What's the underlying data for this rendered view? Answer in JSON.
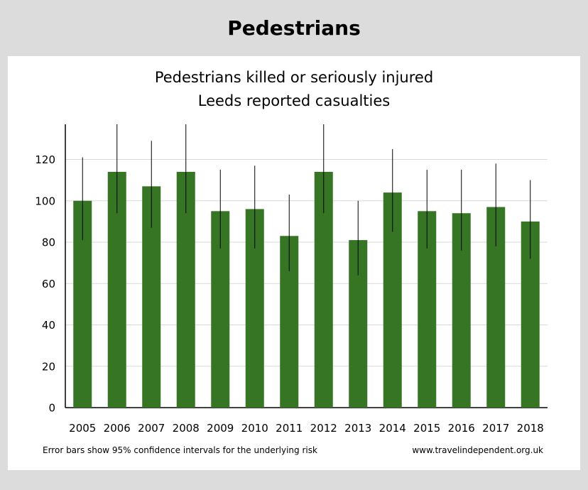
{
  "heading": "Pedestrians",
  "chart_data": {
    "type": "bar",
    "title": "Pedestrians killed or seriously injured",
    "subtitle": "Leeds reported casualties",
    "categories": [
      "2005",
      "2006",
      "2007",
      "2008",
      "2009",
      "2010",
      "2011",
      "2012",
      "2013",
      "2014",
      "2015",
      "2016",
      "2017",
      "2018"
    ],
    "values": [
      100,
      114,
      107,
      114,
      95,
      96,
      83,
      114,
      81,
      104,
      95,
      94,
      97,
      90
    ],
    "error_low": [
      81,
      94,
      87,
      94,
      77,
      77,
      66,
      94,
      64,
      85,
      77,
      76,
      78,
      72
    ],
    "error_high": [
      121,
      137,
      129,
      137,
      115,
      117,
      103,
      137,
      100,
      125,
      115,
      115,
      118,
      110
    ],
    "ylim": [
      0,
      137
    ],
    "yticks": [
      0,
      20,
      40,
      60,
      80,
      100,
      120
    ],
    "grid": true,
    "xlabel": "",
    "ylabel": "",
    "colors": {
      "bar": "#367523",
      "error": "#000000",
      "grid": "#d9d9d9"
    }
  },
  "footnote_left": "Error bars show 95% confidence intervals for the underlying risk",
  "footnote_right": "www.travelindependent.org.uk"
}
